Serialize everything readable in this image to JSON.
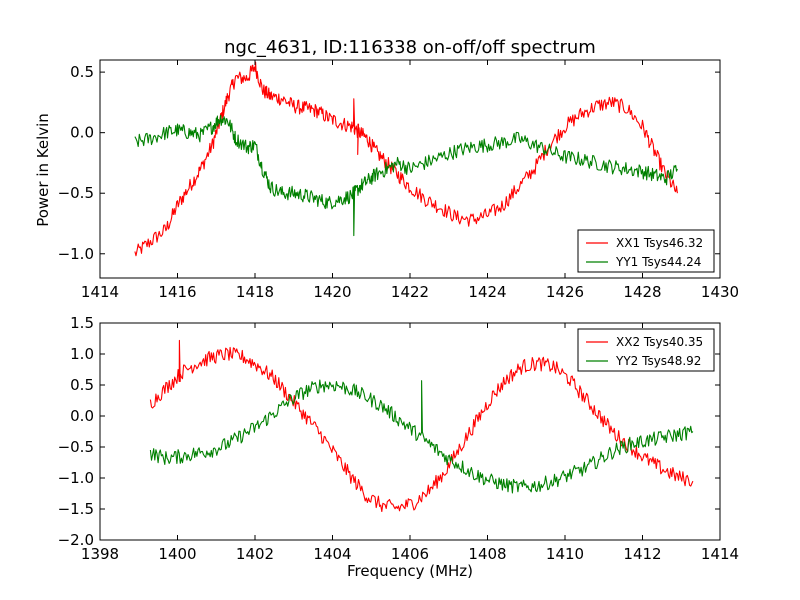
{
  "chart_data": [
    {
      "type": "line",
      "title": "ngc_4631, ID:116338 on-off/off spectrum",
      "xlabel": "",
      "ylabel": "Power in Kelvin",
      "xlim": [
        1414,
        1430
      ],
      "ylim": [
        -1.2,
        0.6
      ],
      "xticks": [
        1414,
        1416,
        1418,
        1420,
        1422,
        1424,
        1426,
        1428,
        1430
      ],
      "yticks": [
        -1.0,
        -0.5,
        0.0,
        0.5
      ],
      "xtick_labels": [
        "1414",
        "1416",
        "1418",
        "1420",
        "1422",
        "1424",
        "1426",
        "1428",
        "1430"
      ],
      "ytick_labels": [
        "−1.0",
        "−0.5",
        "0.0",
        "0.5"
      ],
      "grid": false,
      "legend_position": "lower-right",
      "series": [
        {
          "name": "XX1 Tsys46.32",
          "color": "#ff0000",
          "x": [
            1414.9,
            1415.3,
            1415.7,
            1416.0,
            1416.3,
            1416.6,
            1416.9,
            1417.1,
            1417.3,
            1417.5,
            1417.8,
            1418.0,
            1418.2,
            1418.4,
            1418.7,
            1419.0,
            1419.3,
            1419.6,
            1419.9,
            1420.2,
            1420.5,
            1420.7,
            1420.9,
            1421.1,
            1421.4,
            1421.7,
            1422.0,
            1422.4,
            1422.8,
            1423.2,
            1423.6,
            1424.0,
            1424.4,
            1424.8,
            1425.2,
            1425.6,
            1426.0,
            1426.4,
            1426.8,
            1427.2,
            1427.6,
            1428.0,
            1428.3,
            1428.6,
            1428.9
          ],
          "y": [
            -1.0,
            -0.9,
            -0.8,
            -0.6,
            -0.45,
            -0.3,
            -0.1,
            0.1,
            0.3,
            0.45,
            0.45,
            0.55,
            0.35,
            0.3,
            0.28,
            0.22,
            0.2,
            0.18,
            0.12,
            0.08,
            0.05,
            0.0,
            -0.05,
            -0.15,
            -0.25,
            -0.35,
            -0.45,
            -0.55,
            -0.62,
            -0.7,
            -0.72,
            -0.68,
            -0.6,
            -0.45,
            -0.3,
            -0.1,
            0.05,
            0.15,
            0.22,
            0.25,
            0.2,
            0.05,
            -0.15,
            -0.35,
            -0.5
          ],
          "spikes": [
            {
              "x": 1416.55,
              "y": -0.3
            },
            {
              "x": 1420.55,
              "y": 0.28
            },
            {
              "x": 1420.65,
              "y": -0.18
            }
          ]
        },
        {
          "name": "YY1 Tsys44.24",
          "color": "#008000",
          "x": [
            1414.9,
            1415.3,
            1415.7,
            1416.0,
            1416.3,
            1416.6,
            1416.9,
            1417.1,
            1417.3,
            1417.5,
            1417.8,
            1418.0,
            1418.2,
            1418.4,
            1418.7,
            1419.0,
            1419.3,
            1419.6,
            1419.9,
            1420.2,
            1420.5,
            1420.7,
            1420.9,
            1421.1,
            1421.4,
            1421.7,
            1422.0,
            1422.4,
            1422.8,
            1423.2,
            1423.6,
            1424.0,
            1424.4,
            1424.8,
            1425.2,
            1425.6,
            1426.0,
            1426.4,
            1426.8,
            1427.2,
            1427.6,
            1428.0,
            1428.3,
            1428.6,
            1428.9
          ],
          "y": [
            -0.08,
            -0.05,
            0.0,
            0.02,
            0.0,
            -0.02,
            0.05,
            0.12,
            0.1,
            -0.05,
            -0.12,
            -0.1,
            -0.3,
            -0.45,
            -0.5,
            -0.5,
            -0.52,
            -0.55,
            -0.58,
            -0.55,
            -0.52,
            -0.45,
            -0.4,
            -0.35,
            -0.3,
            -0.25,
            -0.3,
            -0.25,
            -0.2,
            -0.15,
            -0.12,
            -0.1,
            -0.08,
            -0.05,
            -0.1,
            -0.15,
            -0.2,
            -0.22,
            -0.25,
            -0.28,
            -0.3,
            -0.32,
            -0.35,
            -0.38,
            -0.3
          ],
          "spikes": [
            {
              "x": 1420.55,
              "y": -0.85
            }
          ]
        }
      ]
    },
    {
      "type": "line",
      "title": "",
      "xlabel": "Frequency (MHz)",
      "ylabel": "",
      "xlim": [
        1398,
        1414
      ],
      "ylim": [
        -2.0,
        1.5
      ],
      "xticks": [
        1398,
        1400,
        1402,
        1404,
        1406,
        1408,
        1410,
        1412,
        1414
      ],
      "yticks": [
        -2.0,
        -1.5,
        -1.0,
        -0.5,
        0.0,
        0.5,
        1.0,
        1.5
      ],
      "xtick_labels": [
        "1398",
        "1400",
        "1402",
        "1404",
        "1406",
        "1408",
        "1410",
        "1412",
        "1414"
      ],
      "ytick_labels": [
        "−2.0",
        "−1.5",
        "−1.0",
        "−0.5",
        "0.0",
        "0.5",
        "1.0",
        "1.5"
      ],
      "grid": false,
      "legend_position": "upper-right",
      "series": [
        {
          "name": "XX2 Tsys40.35",
          "color": "#ff0000",
          "x": [
            1399.3,
            1399.7,
            1400.1,
            1400.5,
            1400.9,
            1401.3,
            1401.7,
            1402.1,
            1402.5,
            1402.9,
            1403.3,
            1403.7,
            1404.1,
            1404.5,
            1404.9,
            1405.3,
            1405.7,
            1406.1,
            1406.5,
            1406.9,
            1407.3,
            1407.7,
            1408.1,
            1408.5,
            1408.9,
            1409.3,
            1409.7,
            1410.1,
            1410.5,
            1410.9,
            1411.3,
            1411.7,
            1412.1,
            1412.5,
            1412.9,
            1413.3
          ],
          "y": [
            0.2,
            0.45,
            0.7,
            0.85,
            0.95,
            1.0,
            0.95,
            0.8,
            0.6,
            0.3,
            0.0,
            -0.3,
            -0.65,
            -1.0,
            -1.3,
            -1.45,
            -1.48,
            -1.4,
            -1.2,
            -0.9,
            -0.5,
            -0.1,
            0.3,
            0.6,
            0.8,
            0.85,
            0.8,
            0.6,
            0.3,
            0.0,
            -0.3,
            -0.5,
            -0.7,
            -0.85,
            -0.98,
            -1.05
          ],
          "spikes": [
            {
              "x": 1400.05,
              "y": 1.22
            }
          ]
        },
        {
          "name": "YY2 Tsys48.92",
          "color": "#008000",
          "x": [
            1399.3,
            1399.7,
            1400.1,
            1400.5,
            1400.9,
            1401.3,
            1401.7,
            1402.1,
            1402.5,
            1402.9,
            1403.3,
            1403.7,
            1404.1,
            1404.5,
            1404.9,
            1405.3,
            1405.7,
            1406.1,
            1406.5,
            1406.9,
            1407.3,
            1407.7,
            1408.1,
            1408.5,
            1408.9,
            1409.3,
            1409.7,
            1410.1,
            1410.5,
            1410.9,
            1411.3,
            1411.7,
            1412.1,
            1412.5,
            1412.9,
            1413.3
          ],
          "y": [
            -0.6,
            -0.68,
            -0.65,
            -0.6,
            -0.55,
            -0.45,
            -0.3,
            -0.15,
            0.05,
            0.25,
            0.4,
            0.5,
            0.5,
            0.42,
            0.3,
            0.15,
            -0.05,
            -0.25,
            -0.45,
            -0.65,
            -0.8,
            -0.95,
            -1.05,
            -1.12,
            -1.15,
            -1.12,
            -1.05,
            -0.95,
            -0.85,
            -0.7,
            -0.55,
            -0.45,
            -0.4,
            -0.35,
            -0.3,
            -0.25
          ],
          "spikes": [
            {
              "x": 1406.3,
              "y": 0.57
            }
          ]
        }
      ]
    }
  ]
}
